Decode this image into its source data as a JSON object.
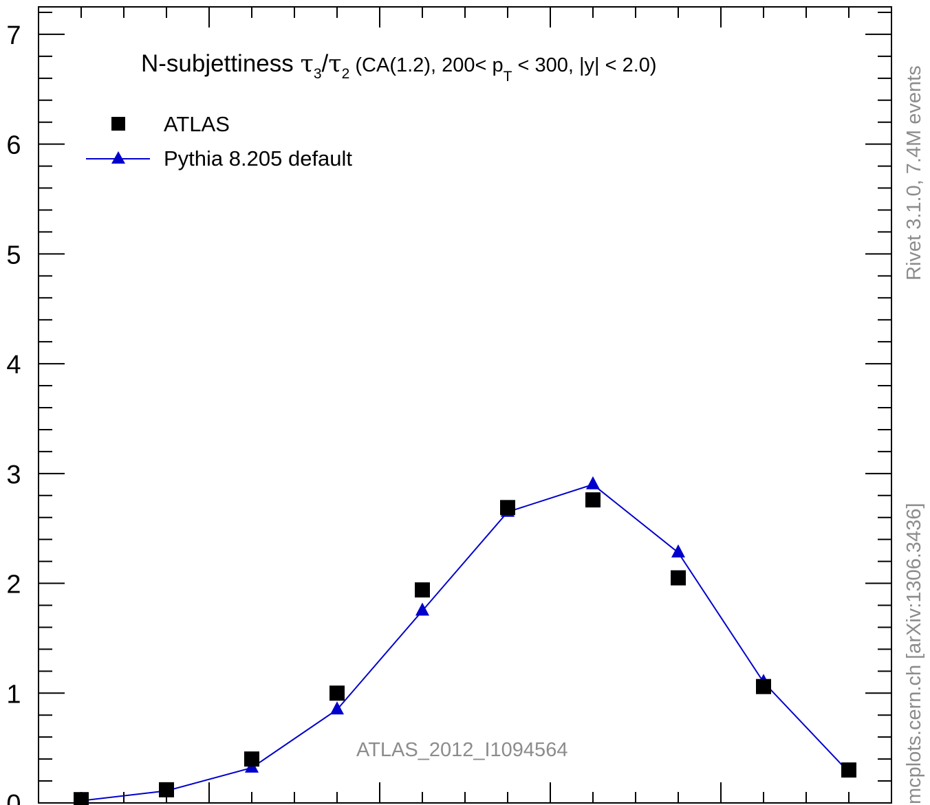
{
  "chart_data": {
    "type": "scatter",
    "title": {
      "prefix": "N-subjettiness ",
      "tau": "τ",
      "numerator_sub": "3",
      "slash": "/",
      "denominator_sub": "2",
      "rest_a": " (CA(1.2), 200< p",
      "pt_sub": "T",
      "rest_b": " < 300, |y| < 2.0)"
    },
    "ylim": [
      0,
      7.25
    ],
    "yticks": [
      "0",
      "1",
      "2",
      "3",
      "4",
      "5",
      "6",
      "7"
    ],
    "x": [
      0.025,
      0.075,
      0.125,
      0.175,
      0.225,
      0.275,
      0.325,
      0.375,
      0.425,
      0.475
    ],
    "xlim": [
      0.0,
      0.5
    ],
    "series": [
      {
        "name": "ATLAS",
        "marker": "square",
        "color": "#000000",
        "values": [
          0.03,
          0.12,
          0.4,
          1.0,
          1.94,
          2.69,
          2.76,
          2.05,
          1.06,
          0.3
        ]
      },
      {
        "name": "Pythia 8.205 default",
        "marker": "triangle",
        "color": "#0000cc",
        "values": [
          0.02,
          0.11,
          0.32,
          0.85,
          1.75,
          2.65,
          2.9,
          2.28,
          1.1,
          0.28
        ]
      }
    ],
    "watermark": "ATLAS_2012_I1094564",
    "side_label_top": "Rivet 3.1.0,  7.4M events",
    "side_label_bottom": "mcplots.cern.ch [arXiv:1306.3436]",
    "grid": false,
    "legend_position": "top-left"
  }
}
